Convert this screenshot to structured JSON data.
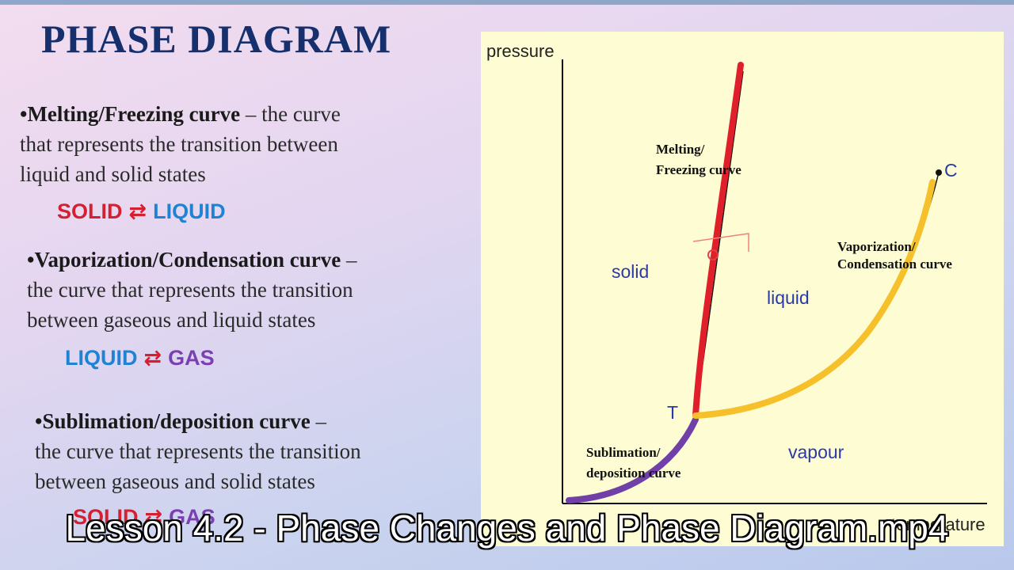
{
  "slide": {
    "title": "PHASE DIAGRAM",
    "bullets": [
      {
        "term": "•Melting/Freezing curve",
        "lines": [
          "– the curve",
          "that represents the transition between",
          "liquid and solid states"
        ],
        "equation": {
          "left": "SOLID",
          "arrow": "⇄",
          "right": "LIQUID"
        }
      },
      {
        "term": "•Vaporization/Condensation curve",
        "lines": [
          "–",
          "the curve that represents the transition",
          "between gaseous and liquid states"
        ],
        "equation": {
          "left": "LIQUID",
          "arrow": "⇄",
          "right": "GAS"
        }
      },
      {
        "term": "•Sublimation/deposition curve",
        "lines": [
          "–",
          "the curve that represents the transition",
          "between gaseous and solid states"
        ],
        "equation": {
          "left": "SOLID",
          "arrow": "⇄",
          "right": "GAS"
        }
      }
    ]
  },
  "diagram": {
    "y_axis_label": "pressure",
    "x_axis_label": "temperature",
    "region_labels": [
      "solid",
      "liquid",
      "vapour"
    ],
    "curve_labels": [
      {
        "lines": [
          "Melting/",
          "Freezing curve"
        ]
      },
      {
        "lines": [
          "Vaporization/",
          "Condensation curve"
        ]
      },
      {
        "lines": [
          "Sublimation/",
          "deposition curve"
        ]
      }
    ],
    "points": [
      "T",
      "C"
    ]
  },
  "caption": "Lesson 4.2 - Phase Changes and Phase Diagram.mp4"
}
